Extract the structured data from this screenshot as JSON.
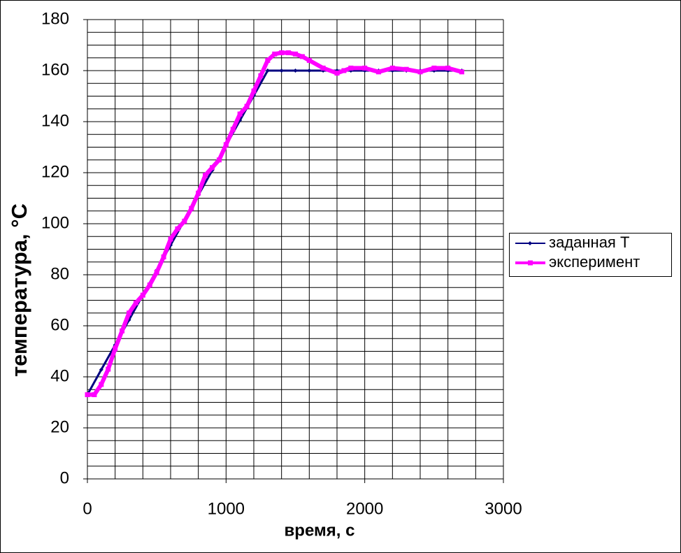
{
  "chart_data": {
    "type": "line",
    "x_label": "время, с",
    "y_label": "температура, °C",
    "xlim": [
      0,
      3000
    ],
    "ylim": [
      0,
      180
    ],
    "xticks": [
      0,
      1000,
      2000,
      3000
    ],
    "yticks": [
      0,
      20,
      40,
      60,
      80,
      100,
      120,
      140,
      160,
      180
    ],
    "grid": true,
    "grid_x": [
      0,
      200,
      400,
      600,
      800,
      1000,
      1200,
      1400,
      1600,
      1800,
      2000,
      2200,
      2400,
      2600,
      2800,
      3000
    ],
    "grid_y": [
      0,
      5,
      10,
      15,
      20,
      25,
      30,
      35,
      40,
      45,
      50,
      55,
      60,
      65,
      70,
      75,
      80,
      85,
      90,
      95,
      100,
      105,
      110,
      115,
      120,
      125,
      130,
      135,
      140,
      145,
      150,
      155,
      160,
      165,
      170,
      175,
      180
    ],
    "legend": "right",
    "series": [
      {
        "name": "заданная T",
        "color": "#000080",
        "marker": "diamond",
        "x": [
          0,
          100,
          200,
          300,
          400,
          500,
          600,
          700,
          800,
          900,
          1000,
          1100,
          1200,
          1300,
          1400,
          1500,
          1600,
          1700,
          1800,
          1900,
          2000,
          2100,
          2200,
          2300,
          2400,
          2500,
          2600,
          2700
        ],
        "values": [
          33,
          42.8,
          52.5,
          62.3,
          72.1,
          81.8,
          91.6,
          101.4,
          111.2,
          120.9,
          130.7,
          140.5,
          150.2,
          160,
          160,
          160,
          160,
          160,
          160,
          160,
          160,
          160,
          160,
          160,
          160,
          160,
          160,
          160
        ]
      },
      {
        "name": "эксперимент",
        "color": "#ff00ff",
        "marker": "square",
        "x": [
          0,
          50,
          100,
          150,
          200,
          250,
          300,
          350,
          400,
          450,
          500,
          550,
          600,
          650,
          700,
          750,
          800,
          850,
          900,
          950,
          1000,
          1050,
          1100,
          1150,
          1200,
          1250,
          1300,
          1350,
          1400,
          1450,
          1500,
          1550,
          1600,
          1700,
          1800,
          1850,
          1900,
          2000,
          2100,
          2200,
          2300,
          2400,
          2500,
          2600,
          2700
        ],
        "values": [
          33,
          33,
          37,
          43,
          51,
          58,
          65,
          69,
          72,
          76,
          81,
          87,
          94,
          98,
          101,
          106,
          112,
          119,
          122,
          125,
          131,
          137,
          143,
          146,
          152,
          158,
          164,
          166.5,
          167,
          167,
          166.5,
          165.5,
          164,
          161,
          159,
          160,
          161,
          161,
          159.5,
          161,
          160.5,
          159.5,
          161,
          161,
          159.5
        ]
      }
    ]
  }
}
